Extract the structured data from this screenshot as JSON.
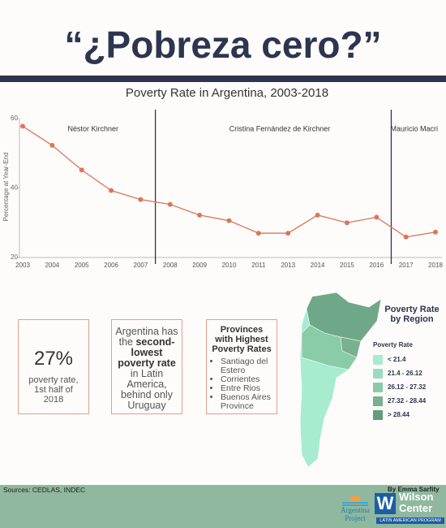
{
  "header": {
    "title": "“¿Pobreza cero?”"
  },
  "chart_data": {
    "type": "line",
    "title": "Poverty Rate in Argentina, 2003-2018",
    "y_label": "Percentage at Year-End",
    "categories": [
      "2003",
      "2004",
      "2005",
      "2006",
      "2007",
      "2008",
      "2009",
      "2010",
      "2011",
      "2013",
      "2014",
      "2015",
      "2016",
      "2017",
      "2018"
    ],
    "values": [
      57.8,
      52.3,
      45.2,
      39.3,
      36.7,
      35.3,
      32.2,
      30.6,
      27.0,
      27.0,
      32.2,
      30.0,
      31.6,
      25.9,
      27.3
    ],
    "color": "#d9775a",
    "ylim": [
      20,
      60
    ],
    "yticks": [
      20,
      40,
      60
    ],
    "annotations": [
      "Néstor Kirchner",
      "Cristina Fernández de Kirchner",
      "Mauricio Macri"
    ]
  },
  "stats": {
    "big": "27%",
    "big_caption": "poverty rate, 1st half of 2018",
    "rank_lead": "Argentina has the",
    "rank_bold": "second-lowest poverty rate",
    "rank_tail": "in Latin America, behind only Uruguay",
    "provinces_title": "Provinces with Highest Poverty Rates",
    "provinces": [
      "Santiago del Estero",
      "Corrientes",
      "Entre Rios",
      "Buenos Aires Province"
    ]
  },
  "map": {
    "title": "Poverty Rate by Region",
    "legend_title": "Poverty Rate",
    "legend": [
      {
        "label": "< 21.4",
        "color": "#a8ecd0"
      },
      {
        "label": "21.4 - 26.12",
        "color": "#9adcbc"
      },
      {
        "label": "26.12 - 27.32",
        "color": "#8acba8"
      },
      {
        "label": "27.32 - 28.44",
        "color": "#78b090"
      },
      {
        "label": "> 28.44",
        "color": "#629c7c"
      }
    ]
  },
  "footer": {
    "sources": "Sources: CEDLAS, INDEC",
    "byline": "By Emma Sarfity",
    "logo1": "Argentina Project",
    "logo2_mark": "W",
    "logo2": "Wilson Center",
    "logo2_sub": "LATIN AMERICAN PROGRAM"
  }
}
